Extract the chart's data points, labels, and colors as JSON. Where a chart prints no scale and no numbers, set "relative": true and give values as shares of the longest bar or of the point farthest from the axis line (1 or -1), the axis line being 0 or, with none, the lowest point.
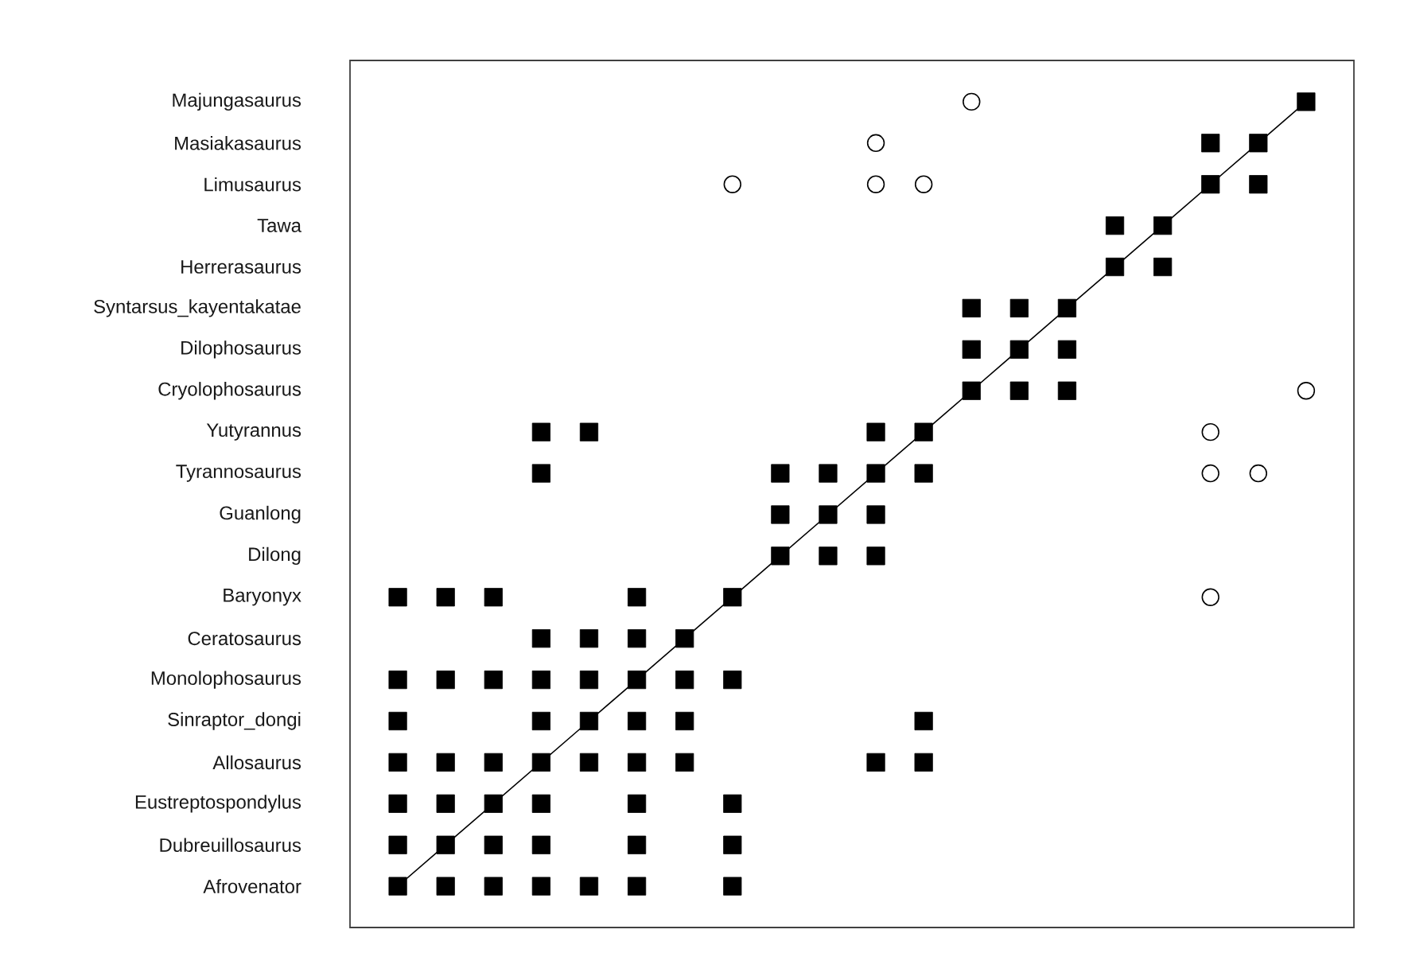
{
  "chart_data": {
    "type": "scatter",
    "orientation": "horizontal",
    "relative": true,
    "categories": [
      "Majungasaurus",
      "Masiakasaurus",
      "Limusaurus",
      "Tawa",
      "Herrerasaurus",
      "Syntarsus_kayentakatae",
      "Dilophosaurus",
      "Cryolophosaurus",
      "Yutyrannus",
      "Tyrannosaurus",
      "Guanlong",
      "Dilong",
      "Baryonyx",
      "Ceratosaurus",
      "Monolophosaurus",
      "Sinraptor_dongi",
      "Allosaurus",
      "Eustreptospondylus",
      "Dubreuillosaurus",
      "Afrovenator"
    ],
    "series": [
      {
        "type": "line",
        "color": "#000000",
        "marker": "none",
        "line_style": "solid",
        "values": [
          1,
          0.95,
          0.9,
          0.85,
          0.8,
          0.75,
          0.7,
          0.65,
          0.6,
          0.55,
          0.5,
          0.45,
          0.4,
          0.35,
          0.3,
          0.25,
          0.2,
          0.15,
          0.1,
          0.05
        ]
      },
      {
        "type": "scatter",
        "color": "#000000",
        "marker": "square",
        "values": [
          null,
          null,
          null,
          null,
          null,
          null,
          null,
          null,
          null,
          null,
          null,
          null,
          0.05,
          null,
          0.05,
          0.05,
          0.05,
          0.05,
          0.05,
          0.05
        ]
      },
      {
        "type": "scatter",
        "color": "#000000",
        "marker": "square",
        "values": [
          null,
          null,
          null,
          null,
          null,
          null,
          null,
          null,
          null,
          null,
          null,
          null,
          0.1,
          null,
          0.1,
          null,
          0.1,
          0.1,
          0.1,
          0.1
        ]
      },
      {
        "type": "scatter",
        "color": "#000000",
        "marker": "square",
        "values": [
          null,
          null,
          null,
          null,
          null,
          null,
          null,
          null,
          null,
          null,
          null,
          null,
          0.15,
          null,
          0.15,
          null,
          0.15,
          0.15,
          0.15,
          0.15
        ]
      },
      {
        "type": "scatter",
        "color": "#000000",
        "marker": "square",
        "values": [
          null,
          null,
          null,
          null,
          null,
          null,
          null,
          null,
          0.2,
          0.2,
          null,
          null,
          null,
          0.2,
          0.2,
          0.2,
          0.2,
          0.2,
          0.2,
          0.2
        ]
      },
      {
        "type": "scatter",
        "color": "#000000",
        "marker": "square",
        "values": [
          null,
          null,
          null,
          null,
          null,
          null,
          null,
          null,
          0.25,
          null,
          null,
          null,
          null,
          0.25,
          0.25,
          0.25,
          0.25,
          null,
          null,
          0.25
        ]
      },
      {
        "type": "scatter",
        "color": "#000000",
        "marker": "square",
        "values": [
          null,
          null,
          null,
          null,
          null,
          null,
          null,
          null,
          null,
          null,
          null,
          null,
          0.3,
          0.3,
          0.3,
          0.3,
          0.3,
          0.3,
          0.3,
          0.3
        ]
      },
      {
        "type": "scatter",
        "color": "#000000",
        "marker": "square",
        "values": [
          null,
          null,
          null,
          null,
          null,
          null,
          null,
          null,
          null,
          null,
          null,
          null,
          null,
          0.35,
          0.35,
          0.35,
          0.35,
          null,
          null,
          null
        ]
      },
      {
        "type": "scatter",
        "color": "#000000",
        "marker": "square",
        "values": [
          null,
          null,
          null,
          null,
          null,
          null,
          null,
          null,
          null,
          null,
          null,
          null,
          0.4,
          null,
          0.4,
          null,
          null,
          0.4,
          0.4,
          0.4
        ]
      },
      {
        "type": "scatter",
        "color": "#000000",
        "marker": "square",
        "values": [
          null,
          null,
          null,
          null,
          null,
          null,
          null,
          null,
          null,
          0.45,
          0.45,
          0.45,
          null,
          null,
          null,
          null,
          null,
          null,
          null,
          null
        ]
      },
      {
        "type": "scatter",
        "color": "#000000",
        "marker": "square",
        "values": [
          null,
          null,
          null,
          null,
          null,
          null,
          null,
          null,
          null,
          0.5,
          0.5,
          0.5,
          null,
          null,
          null,
          null,
          null,
          null,
          null,
          null
        ]
      },
      {
        "type": "scatter",
        "color": "#000000",
        "marker": "square",
        "values": [
          null,
          null,
          null,
          null,
          null,
          null,
          null,
          null,
          0.55,
          0.55,
          0.55,
          0.55,
          null,
          null,
          null,
          null,
          0.55,
          null,
          null,
          null
        ]
      },
      {
        "type": "scatter",
        "color": "#000000",
        "marker": "square",
        "values": [
          null,
          null,
          null,
          null,
          null,
          null,
          null,
          null,
          0.6,
          0.6,
          null,
          null,
          null,
          null,
          null,
          0.6,
          0.6,
          null,
          null,
          null
        ]
      },
      {
        "type": "scatter",
        "color": "#000000",
        "marker": "square",
        "values": [
          null,
          null,
          null,
          null,
          null,
          0.65,
          0.65,
          0.65,
          null,
          null,
          null,
          null,
          null,
          null,
          null,
          null,
          null,
          null,
          null,
          null
        ]
      },
      {
        "type": "scatter",
        "color": "#000000",
        "marker": "square",
        "values": [
          null,
          null,
          null,
          null,
          null,
          0.7,
          0.7,
          0.7,
          null,
          null,
          null,
          null,
          null,
          null,
          null,
          null,
          null,
          null,
          null,
          null
        ]
      },
      {
        "type": "scatter",
        "color": "#000000",
        "marker": "square",
        "values": [
          null,
          null,
          null,
          null,
          null,
          0.75,
          0.75,
          0.75,
          null,
          null,
          null,
          null,
          null,
          null,
          null,
          null,
          null,
          null,
          null,
          null
        ]
      },
      {
        "type": "scatter",
        "color": "#000000",
        "marker": "square",
        "values": [
          null,
          null,
          null,
          0.8,
          0.8,
          null,
          null,
          null,
          null,
          null,
          null,
          null,
          null,
          null,
          null,
          null,
          null,
          null,
          null,
          null
        ]
      },
      {
        "type": "scatter",
        "color": "#000000",
        "marker": "square",
        "values": [
          null,
          null,
          null,
          0.85,
          0.85,
          null,
          null,
          null,
          null,
          null,
          null,
          null,
          null,
          null,
          null,
          null,
          null,
          null,
          null,
          null
        ]
      },
      {
        "type": "scatter",
        "color": "#000000",
        "marker": "square",
        "values": [
          null,
          0.9,
          0.9,
          null,
          null,
          null,
          null,
          null,
          null,
          null,
          null,
          null,
          null,
          null,
          null,
          null,
          null,
          null,
          null,
          null
        ]
      },
      {
        "type": "scatter",
        "color": "#000000",
        "marker": "square",
        "values": [
          null,
          0.95,
          0.95,
          null,
          null,
          null,
          null,
          null,
          null,
          null,
          null,
          null,
          null,
          null,
          null,
          null,
          null,
          null,
          null,
          null
        ]
      },
      {
        "type": "scatter",
        "color": "#000000",
        "marker": "square",
        "values": [
          1,
          null,
          null,
          null,
          null,
          null,
          null,
          null,
          null,
          null,
          null,
          null,
          null,
          null,
          null,
          null,
          null,
          null,
          null,
          null
        ]
      },
      {
        "type": "scatter",
        "color": "#000000",
        "marker": "circle",
        "values": [
          null,
          null,
          0.4,
          null,
          null,
          null,
          null,
          null,
          null,
          null,
          null,
          null,
          null,
          null,
          null,
          null,
          null,
          null,
          null,
          null
        ]
      },
      {
        "type": "scatter",
        "color": "#000000",
        "marker": "circle",
        "values": [
          null,
          0.55,
          0.55,
          null,
          null,
          null,
          null,
          null,
          null,
          null,
          null,
          null,
          null,
          null,
          null,
          null,
          null,
          null,
          null,
          null
        ]
      },
      {
        "type": "scatter",
        "color": "#000000",
        "marker": "circle",
        "values": [
          null,
          null,
          0.6,
          null,
          null,
          null,
          null,
          null,
          null,
          null,
          null,
          null,
          null,
          null,
          null,
          null,
          null,
          null,
          null,
          null
        ]
      },
      {
        "type": "scatter",
        "color": "#000000",
        "marker": "circle",
        "values": [
          0.65,
          null,
          null,
          null,
          null,
          null,
          null,
          null,
          null,
          null,
          null,
          null,
          null,
          null,
          null,
          null,
          null,
          null,
          null,
          null
        ]
      },
      {
        "type": "scatter",
        "color": "#000000",
        "marker": "circle",
        "values": [
          null,
          null,
          null,
          null,
          null,
          null,
          null,
          null,
          0.9,
          0.9,
          null,
          null,
          0.9,
          null,
          null,
          null,
          null,
          null,
          null,
          null
        ]
      },
      {
        "type": "scatter",
        "color": "#000000",
        "marker": "circle",
        "values": [
          null,
          null,
          null,
          null,
          null,
          null,
          null,
          null,
          null,
          0.95,
          null,
          null,
          null,
          null,
          null,
          null,
          null,
          null,
          null,
          null
        ]
      },
      {
        "type": "scatter",
        "color": "#000000",
        "marker": "circle",
        "values": [
          null,
          null,
          null,
          null,
          null,
          null,
          null,
          1,
          null,
          null,
          null,
          null,
          null,
          null,
          null,
          null,
          null,
          null,
          null,
          null
        ]
      }
    ]
  }
}
